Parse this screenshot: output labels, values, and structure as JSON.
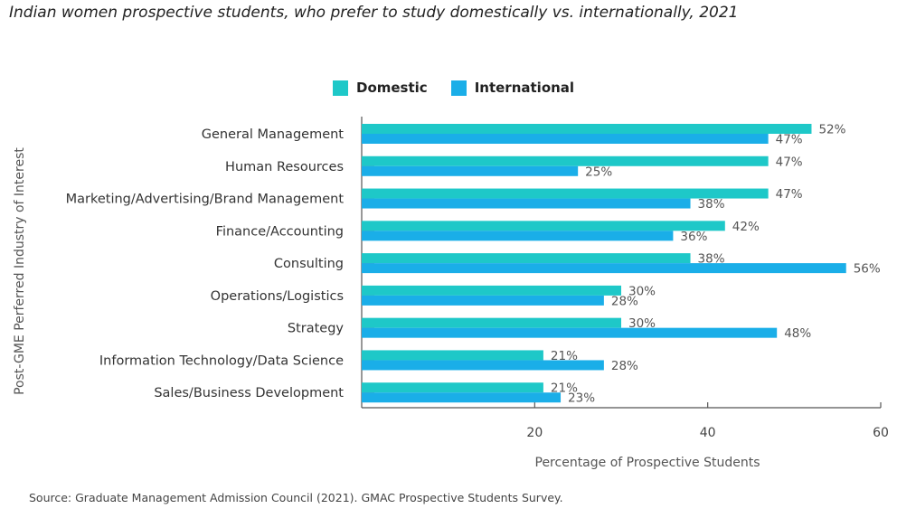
{
  "chart_data": {
    "type": "bar",
    "orientation": "horizontal",
    "title": "Indian women prospective students, who prefer to study domestically vs. internationally, 2021",
    "xlabel": "Percentage of Prospective Students",
    "ylabel": "Post-GME Perferred Industry of Interest",
    "source": "Source: Graduate Management Admission Council (2021). GMAC Prospective Students Survey.",
    "xlim": [
      0,
      60
    ],
    "xticks": [
      "20",
      "40",
      "60"
    ],
    "xtick_values": [
      20,
      40,
      60
    ],
    "legend_position": "top",
    "categories": [
      "General Management",
      "Human Resources",
      "Marketing/Advertising/Brand Management",
      "Finance/Accounting",
      "Consulting",
      "Operations/Logistics",
      "Strategy",
      "Information Technology/Data Science",
      "Sales/Business Development"
    ],
    "series": [
      {
        "name": "Domestic",
        "color": "#1ec8c8",
        "values": [
          52,
          47,
          47,
          42,
          38,
          30,
          30,
          21,
          21
        ],
        "labels": [
          "52%",
          "47%",
          "47%",
          "42%",
          "38%",
          "30%",
          "30%",
          "21%",
          "21%"
        ]
      },
      {
        "name": "International",
        "color": "#1aaee8",
        "values": [
          47,
          25,
          38,
          36,
          56,
          28,
          48,
          28,
          23
        ],
        "labels": [
          "47%",
          "25%",
          "38%",
          "36%",
          "56%",
          "28%",
          "48%",
          "28%",
          "23%"
        ]
      }
    ]
  }
}
